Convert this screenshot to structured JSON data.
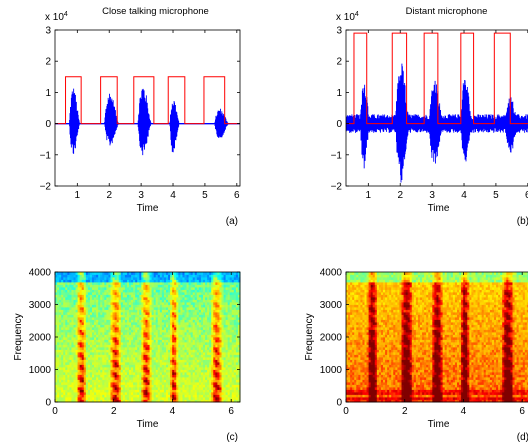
{
  "chart_data": [
    {
      "id": "a",
      "type": "line",
      "title": "Close talking microphone",
      "panel_label": "(a)",
      "xlabel": "Time",
      "ylabel": "",
      "y_multiplier": "x 10",
      "y_multiplier_exp": "4",
      "xlim": [
        0.3,
        6.1
      ],
      "ylim": [
        -2,
        3
      ],
      "xticks": [
        1,
        2,
        3,
        4,
        5,
        6
      ],
      "yticks": [
        -2,
        -1,
        0,
        1,
        2,
        3
      ],
      "series": [
        {
          "color": "#0000ff",
          "bursts": [
            {
              "start": 0.75,
              "end": 1.08,
              "peak": 1.2,
              "trough": -1.05
            },
            {
              "start": 1.85,
              "end": 2.3,
              "peak": 1.05,
              "trough": -0.75
            },
            {
              "start": 2.9,
              "end": 3.32,
              "peak": 1.3,
              "trough": -1.05
            },
            {
              "start": 3.9,
              "end": 4.2,
              "peak": 0.85,
              "trough": -1.0
            },
            {
              "start": 5.3,
              "end": 5.75,
              "peak": 0.5,
              "trough": -0.5
            }
          ]
        },
        {
          "color": "#ff0000",
          "low": 0,
          "high": 1.5,
          "on": [
            [
              0.63,
              1.12
            ],
            [
              1.73,
              2.25
            ],
            [
              2.77,
              3.4
            ],
            [
              3.85,
              4.37
            ],
            [
              4.97,
              5.62
            ]
          ]
        }
      ]
    },
    {
      "id": "b",
      "type": "line",
      "title": "Distant microphone",
      "panel_label": "(b)",
      "xlabel": "Time",
      "ylabel": "",
      "y_multiplier": "x 10",
      "y_multiplier_exp": "4",
      "xlim": [
        0.3,
        6.1
      ],
      "ylim": [
        -2,
        3
      ],
      "xticks": [
        1,
        2,
        3,
        4,
        5,
        6
      ],
      "yticks": [
        -2,
        -1,
        0,
        1,
        2,
        3
      ],
      "series": [
        {
          "color": "#0000ff",
          "noise": 0.3,
          "bursts": [
            {
              "start": 0.75,
              "end": 1.05,
              "peak": 1.5,
              "trough": -1.5
            },
            {
              "start": 1.85,
              "end": 2.3,
              "peak": 2.0,
              "trough": -1.9
            },
            {
              "start": 2.9,
              "end": 3.35,
              "peak": 1.45,
              "trough": -1.4
            },
            {
              "start": 3.9,
              "end": 4.25,
              "peak": 1.65,
              "trough": -1.3
            },
            {
              "start": 5.3,
              "end": 5.7,
              "peak": 0.9,
              "trough": -1.05
            }
          ]
        },
        {
          "color": "#ff0000",
          "low": 0,
          "high": 2.9,
          "on": [
            [
              0.55,
              0.95
            ],
            [
              1.75,
              2.2
            ],
            [
              2.75,
              3.18
            ],
            [
              3.9,
              4.3
            ],
            [
              4.95,
              5.45
            ]
          ]
        }
      ]
    },
    {
      "id": "c",
      "type": "heatmap",
      "panel_label": "(c)",
      "xlabel": "Time",
      "ylabel": "Frequency",
      "xlim": [
        0,
        6.3
      ],
      "ylim": [
        0,
        4000
      ],
      "xticks": [
        0,
        2,
        4,
        6
      ],
      "yticks": [
        0,
        1000,
        2000,
        3000,
        4000
      ],
      "colormap": [
        "#00007f",
        "#0000ff",
        "#00a0ff",
        "#00ffff",
        "#a0ff60",
        "#ffff00",
        "#ffa000",
        "#ff0000",
        "#800000"
      ],
      "background_level": 0.45,
      "speech_segments": [
        [
          0.72,
          1.08
        ],
        [
          1.85,
          2.28
        ],
        [
          2.92,
          3.3
        ],
        [
          3.9,
          4.2
        ],
        [
          5.3,
          5.72
        ]
      ]
    },
    {
      "id": "d",
      "type": "heatmap",
      "panel_label": "(d)",
      "xlabel": "Time",
      "ylabel": "Frequency",
      "xlim": [
        0,
        6.3
      ],
      "ylim": [
        0,
        4000
      ],
      "xticks": [
        0,
        2,
        4,
        6
      ],
      "yticks": [
        0,
        1000,
        2000,
        3000,
        4000
      ],
      "colormap": [
        "#00007f",
        "#0000ff",
        "#00a0ff",
        "#00ffff",
        "#a0ff60",
        "#ffff00",
        "#ffa000",
        "#ff0000",
        "#800000"
      ],
      "background_level": 0.68,
      "speech_segments": [
        [
          0.72,
          1.08
        ],
        [
          1.85,
          2.28
        ],
        [
          2.92,
          3.3
        ],
        [
          3.9,
          4.2
        ],
        [
          5.3,
          5.72
        ]
      ]
    }
  ]
}
